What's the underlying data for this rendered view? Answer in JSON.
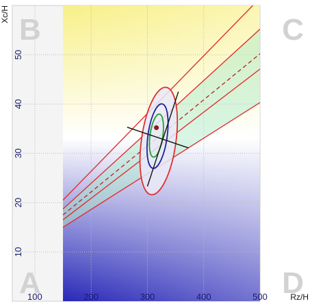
{
  "chart_data": {
    "type": "line",
    "title": "",
    "xlabel": "Rz/H",
    "ylabel": "Xc/H",
    "xlim": [
      60,
      500
    ],
    "ylim": [
      0,
      60
    ],
    "x_ticks": [
      100,
      200,
      300,
      400,
      500
    ],
    "y_ticks": [
      10,
      20,
      30,
      40,
      50
    ],
    "grid": true,
    "quadrant_labels": [
      "A",
      "B",
      "C",
      "D"
    ],
    "region_x_start": 150,
    "background_top_color": "#f8f088",
    "background_bottom_color": "#2828b8",
    "boundary_lines": [
      {
        "role": "upper-outer",
        "style": "solid",
        "color": "#e03030",
        "x": [
          150,
          500
        ],
        "y": [
          20.5,
          61.5
        ]
      },
      {
        "role": "upper-inner",
        "style": "solid",
        "color": "#e03030",
        "x": [
          150,
          500
        ],
        "y": [
          18.7,
          55.2
        ]
      },
      {
        "role": "center",
        "style": "dashed",
        "color": "#b03030",
        "x": [
          150,
          500
        ],
        "y": [
          17.5,
          50.2
        ]
      },
      {
        "role": "lower-inner",
        "style": "solid",
        "color": "#e03030",
        "x": [
          150,
          500
        ],
        "y": [
          16.5,
          47.1
        ]
      },
      {
        "role": "lower-outer",
        "style": "solid",
        "color": "#e03030",
        "x": [
          150,
          500
        ],
        "y": [
          15.0,
          40.3
        ]
      }
    ],
    "band_fill_color": "#a8e8c8",
    "ellipses": [
      {
        "role": "outer",
        "color": "#e03030",
        "center": [
          320,
          32.5
        ],
        "rx": 70,
        "ry": 11,
        "tilt_deg": 8
      },
      {
        "role": "middle",
        "color": "#2020a0",
        "center": [
          318,
          33.5
        ],
        "rx": 39,
        "ry": 6.6,
        "tilt_deg": 8
      },
      {
        "role": "inner",
        "color": "#20a030",
        "center": [
          316,
          33.6
        ],
        "rx": 26,
        "ry": 4.4,
        "tilt_deg": 8
      }
    ],
    "axes_cross": [
      {
        "x": [
          264,
          373
        ],
        "y": [
          35.3,
          31.1
        ]
      },
      {
        "x": [
          300,
          355
        ],
        "y": [
          23.3,
          42.5
        ]
      }
    ],
    "point": {
      "x": 316,
      "y": 35.2,
      "color": "#8b1a1a"
    }
  }
}
